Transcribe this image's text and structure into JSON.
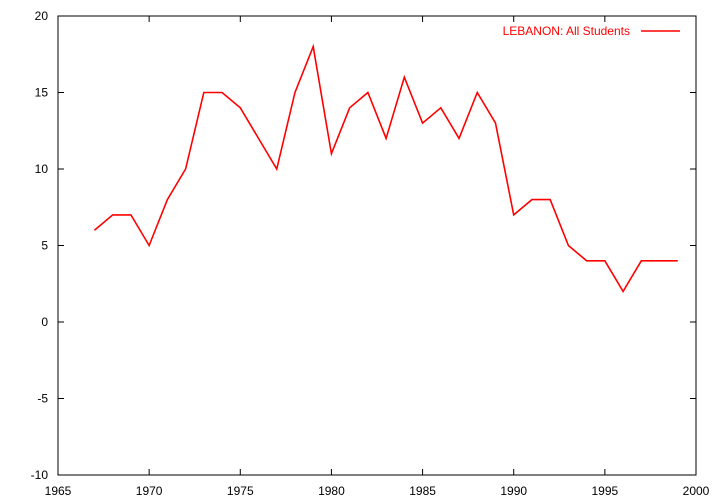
{
  "chart_data": {
    "type": "line",
    "title": "",
    "xlabel": "",
    "ylabel": "",
    "xlim": [
      1965,
      2000
    ],
    "ylim": [
      -10,
      20
    ],
    "grid": false,
    "legend_position": "top-right",
    "x_ticks": [
      1965,
      1970,
      1975,
      1980,
      1985,
      1990,
      1995,
      2000
    ],
    "y_ticks": [
      -10,
      -5,
      0,
      5,
      10,
      15,
      20
    ],
    "series": [
      {
        "name": "LEBANON: All Students",
        "color": "#ff0000",
        "x": [
          1967,
          1968,
          1969,
          1970,
          1971,
          1972,
          1973,
          1974,
          1975,
          1976,
          1977,
          1978,
          1979,
          1980,
          1981,
          1982,
          1983,
          1984,
          1985,
          1986,
          1987,
          1988,
          1989,
          1990,
          1991,
          1992,
          1993,
          1994,
          1995,
          1996,
          1997,
          1998,
          1999
        ],
        "values": [
          6,
          7,
          7,
          5,
          8,
          10,
          15,
          15,
          14,
          12,
          10,
          15,
          18,
          11,
          14,
          15,
          12,
          16,
          13,
          14,
          12,
          15,
          13,
          7,
          8,
          8,
          5,
          4,
          4,
          2,
          4,
          4,
          4
        ]
      }
    ]
  }
}
